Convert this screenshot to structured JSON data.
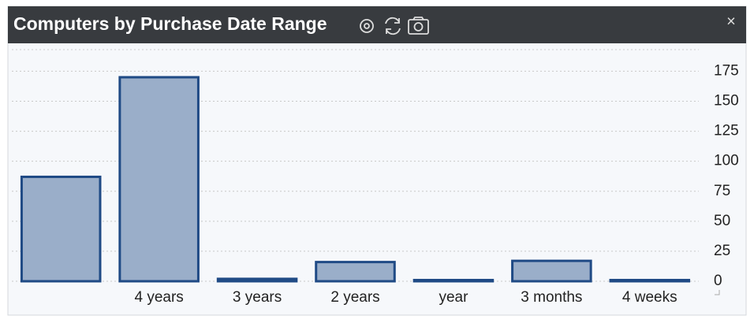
{
  "chart_data": {
    "type": "bar",
    "title": "Computers by Purchase Date Range",
    "categories": [
      null,
      "4 years",
      "3 years",
      "2 years",
      "year",
      "3 months",
      "4 weeks"
    ],
    "values": [
      87,
      170,
      2,
      16,
      1,
      17,
      1
    ],
    "color": "#9aaec9",
    "edge_color": "#1f4a85",
    "ylim": [
      0,
      193
    ],
    "yticks": [
      0,
      25,
      50,
      75,
      100,
      125,
      150,
      175
    ],
    "grid": true
  }
}
